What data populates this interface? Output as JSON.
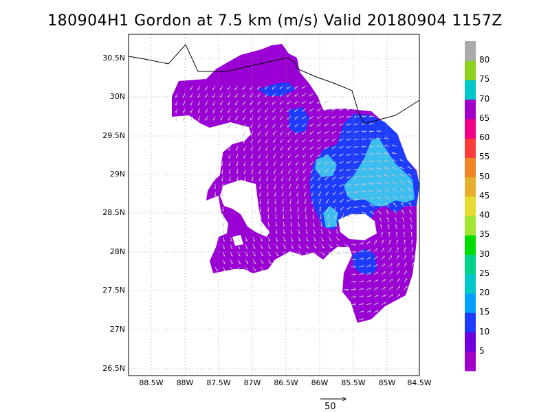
{
  "title": "180904H1 Gordon at 7.5 km (m/s) Valid 20180904 1157Z",
  "lat_labels": [
    "30.5N",
    "30N",
    "29.5N",
    "29N",
    "28.5N",
    "28N",
    "27.5N",
    "27N",
    "26.5N"
  ],
  "lon_labels": [
    "88.5W",
    "88W",
    "87.5W",
    "87W",
    "86.5W",
    "86W",
    "85.5W",
    "85W",
    "84.5W"
  ],
  "colorbar": {
    "labels": [
      "5",
      "10",
      "15",
      "20",
      "25",
      "30",
      "35",
      "40",
      "45",
      "50",
      "55",
      "60",
      "65",
      "70",
      "75",
      "80"
    ],
    "colors": [
      "#a000c8",
      "#6e00dc",
      "#1e3cff",
      "#00a0ff",
      "#00c8c8",
      "#00d28c",
      "#00dc00",
      "#a0e632",
      "#e6dc32",
      "#e6af2d",
      "#f08228",
      "#fa3c3c",
      "#f00082",
      "#a000c8",
      "#00c8c8",
      "#8cd21e",
      "#aaaaaa"
    ]
  },
  "field_colors": {
    "dominant": "#9a00d4",
    "low": "#a000c8",
    "mid": "#1e3cff",
    "high": "#3cbef0"
  },
  "reference_vector": {
    "label": "50",
    "magnitude": 50
  },
  "legend_units": "m/s"
}
